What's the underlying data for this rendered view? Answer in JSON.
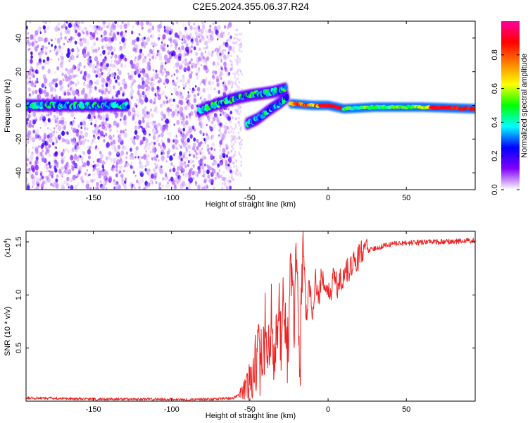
{
  "figure": {
    "title": "C2E5.2024.355.06.37.R24"
  },
  "chart_data": [
    {
      "type": "heatmap",
      "xlabel": "Height of straight line (km)",
      "ylabel": "Frequency (Hz)",
      "xlim": [
        -193,
        94
      ],
      "ylim": [
        -50,
        50
      ],
      "xticks": [
        -150,
        -100,
        -50,
        0,
        50
      ],
      "yticks": [
        -40,
        -20,
        0,
        20,
        40
      ],
      "grid": false,
      "colorbar": {
        "label": "Normalized spectral amplitude",
        "range": [
          0,
          1
        ],
        "ticks": [
          0.0,
          0.2,
          0.4,
          0.6,
          0.8
        ],
        "tick_labels": [
          "0.0",
          "0.2",
          "0.4",
          "0.6",
          "0.8"
        ],
        "colormap": [
          "#ffffff",
          "#8000ff",
          "#0000ff",
          "#00ffff",
          "#00ff00",
          "#ffff00",
          "#ff8000",
          "#ff0000",
          "#ff00a0"
        ]
      },
      "features": [
        {
          "kind": "scattered-noise",
          "x_range": [
            -193,
            -62
          ],
          "y_range": [
            -50,
            50
          ],
          "amplitude": 0.15
        },
        {
          "kind": "ridge",
          "x": [
            -193,
            -170,
            -150,
            -140,
            -128
          ],
          "y": [
            0,
            0,
            0,
            0,
            0
          ],
          "amplitude": 0.35
        },
        {
          "kind": "ridge",
          "x": [
            -82,
            -70,
            -60,
            -50,
            -42,
            -35,
            -27
          ],
          "y": [
            -3,
            1,
            4,
            6,
            7,
            8,
            10
          ],
          "amplitude": 0.4
        },
        {
          "kind": "ridge",
          "x": [
            -52,
            -45,
            -38,
            -30,
            -26
          ],
          "y": [
            -11,
            -8,
            -3,
            2,
            5
          ],
          "amplitude": 0.35
        },
        {
          "kind": "ridge",
          "x": [
            -24,
            -10,
            0,
            10,
            30,
            60,
            94
          ],
          "y": [
            1,
            0,
            0,
            -2,
            -1,
            -1,
            -2
          ],
          "amplitude": 0.9
        }
      ]
    },
    {
      "type": "line",
      "xlabel": "Height of straight line (km)",
      "ylabel": "SNR (10 * v/v)",
      "y_multiplier": "(x10",
      "y_multiplier_exp": "4",
      "y_multiplier_close": ")",
      "xlim": [
        -193,
        94
      ],
      "ylim": [
        0,
        16000
      ],
      "xticks": [
        -150,
        -100,
        -50,
        0,
        50
      ],
      "yticks": [
        5000,
        10000,
        15000
      ],
      "ytick_labels": [
        "0.5",
        "1.0",
        "1.5"
      ],
      "color": "#ee2222",
      "x": [
        -193,
        -170,
        -150,
        -130,
        -110,
        -90,
        -70,
        -60,
        -55,
        -52,
        -48,
        -45,
        -42,
        -40,
        -38,
        -36,
        -34,
        -32,
        -30,
        -28,
        -26,
        -24,
        -22,
        -20,
        -18,
        -16,
        -14,
        -12,
        -10,
        -8,
        -6,
        -4,
        -2,
        0,
        2,
        4,
        6,
        8,
        10,
        12,
        14,
        16,
        18,
        20,
        22,
        25,
        30,
        35,
        40,
        50,
        60,
        70,
        80,
        90,
        94
      ],
      "y": [
        300,
        250,
        200,
        180,
        170,
        160,
        200,
        300,
        900,
        1500,
        2600,
        4500,
        3500,
        7500,
        5500,
        8000,
        4000,
        9000,
        6000,
        10000,
        5000,
        12000,
        7000,
        14000,
        3000,
        15200,
        8000,
        11000,
        8500,
        12000,
        9500,
        12500,
        10000,
        11000,
        10500,
        12000,
        10800,
        11500,
        11200,
        12500,
        12200,
        13000,
        13000,
        13800,
        14000,
        14200,
        14400,
        14600,
        14800,
        14900,
        14950,
        15000,
        15050,
        15100,
        15150
      ]
    }
  ]
}
